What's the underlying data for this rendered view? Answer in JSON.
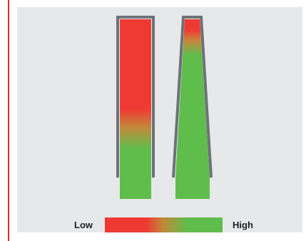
{
  "colors": {
    "accent": "#d9302a",
    "panel": "#e7e8e9",
    "low": "#ef3a34",
    "high": "#5fbd4c",
    "outline": "#6d7278"
  },
  "legend": {
    "low_label": "Low",
    "high_label": "High"
  },
  "diagram": {
    "left_container": {
      "shape": "straight-walled",
      "level": 0.5
    },
    "right_container": {
      "shape": "tapered",
      "level": 0.1
    }
  }
}
